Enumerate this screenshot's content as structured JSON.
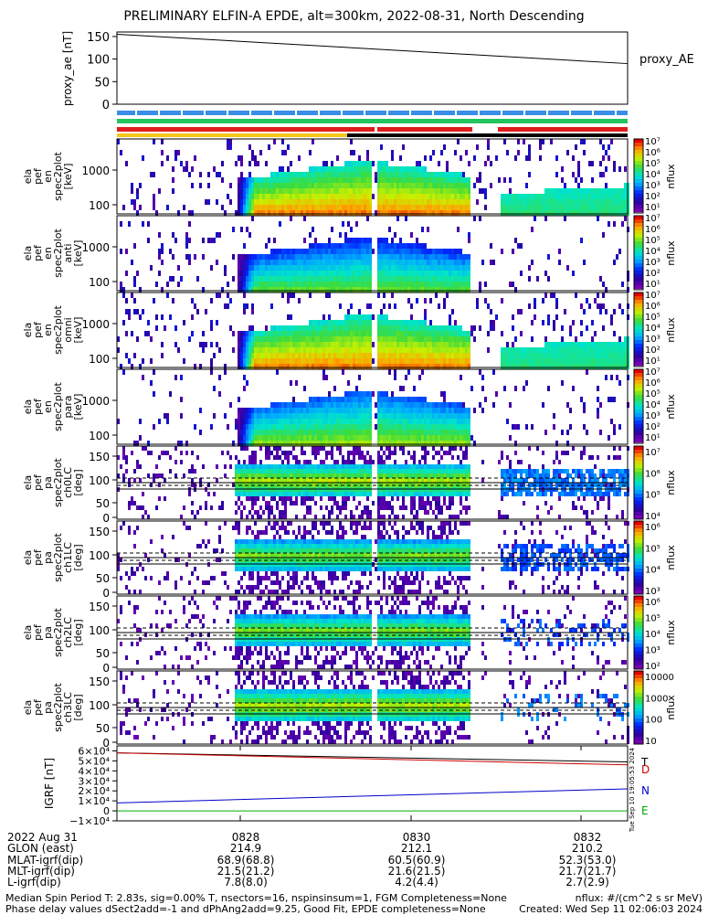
{
  "title": "PRELIMINARY ELFIN-A EPDE, alt=300km, 2022-08-31, North Descending",
  "colors": {
    "axis": "#000000",
    "trace": "#000000",
    "Bx": "#cc0000",
    "By": "#0000cc",
    "Bz": "#00aa00"
  },
  "panels": {
    "proxy_ae": {
      "ylabel": "proxy_ae [nT]",
      "series_label": "proxy_AE",
      "yticks": [
        "150",
        "100",
        "50",
        "0"
      ]
    },
    "bars": {
      "colors": [
        "#3a8ee8",
        "#22c55e",
        "#e01b1b",
        "#f5c518",
        "#000000"
      ]
    },
    "energy_spec": [
      {
        "ylabel": [
          "ela",
          "pef",
          "en",
          "spec2plot",
          "[keV]"
        ],
        "yticks": [
          "1000",
          "100"
        ],
        "cb_label": "nflux",
        "cb_ticks": [
          "10⁷",
          "10⁶",
          "10⁵",
          "10⁴",
          "10³",
          "10²",
          "10¹"
        ]
      },
      {
        "ylabel": [
          "ela",
          "pef",
          "en",
          "spec2plot",
          "anti",
          "[keV]"
        ],
        "yticks": [
          "1000",
          "100"
        ],
        "cb_label": "nflux",
        "cb_ticks": [
          "10⁷",
          "10⁶",
          "10⁵",
          "10⁴",
          "10³",
          "10²",
          "10¹"
        ]
      },
      {
        "ylabel": [
          "ela",
          "pef",
          "en",
          "spec2plot",
          "omni",
          "[keV]"
        ],
        "yticks": [
          "1000",
          "100"
        ],
        "cb_label": "nflux",
        "cb_ticks": [
          "10⁷",
          "10⁶",
          "10⁵",
          "10⁴",
          "10³",
          "10²",
          "10¹"
        ]
      },
      {
        "ylabel": [
          "ela",
          "pef",
          "en",
          "spec2plot",
          "para",
          "[keV]"
        ],
        "yticks": [
          "1000",
          "100"
        ],
        "cb_label": "nflux",
        "cb_ticks": [
          "10⁷",
          "10⁶",
          "10⁵",
          "10⁴",
          "10³",
          "10²",
          "10¹"
        ]
      }
    ],
    "pa_spec": [
      {
        "ylabel": [
          "ela",
          "pef",
          "pa",
          "spec2plot",
          "ch0LC",
          "[deg]"
        ],
        "yticks": [
          "150",
          "100",
          "50",
          "0"
        ],
        "cb_label": "nflux",
        "cb_ticks": [
          "10⁷",
          "10⁶",
          "10⁵",
          "10⁴"
        ]
      },
      {
        "ylabel": [
          "ela",
          "pef",
          "pa",
          "spec2plot",
          "ch1LC",
          "[deg]"
        ],
        "yticks": [
          "150",
          "100",
          "50",
          "0"
        ],
        "cb_label": "nflux",
        "cb_ticks": [
          "10⁶",
          "10⁵",
          "10⁴",
          "10³"
        ]
      },
      {
        "ylabel": [
          "ela",
          "pef",
          "pa",
          "spec2plot",
          "ch2LC",
          "[deg]"
        ],
        "yticks": [
          "150",
          "100",
          "50",
          "0"
        ],
        "cb_label": "nflux",
        "cb_ticks": [
          "10⁶",
          "10⁵",
          "10⁴",
          "10³",
          "10²"
        ]
      },
      {
        "ylabel": [
          "ela",
          "pef",
          "pa",
          "spec2plot",
          "ch3LC",
          "[deg]"
        ],
        "yticks": [
          "150",
          "100",
          "50",
          "0"
        ],
        "cb_label": "nflux",
        "cb_ticks": [
          "10000",
          "1000",
          "100",
          "10"
        ]
      }
    ],
    "igrf": {
      "ylabel": "IGRF [nT]",
      "yticks": [
        "6×10⁴",
        "5×10⁴",
        "4×10⁴",
        "3×10⁴",
        "2×10⁴",
        "1×10⁴",
        "0",
        "−1×10⁴"
      ],
      "legend": [
        "T",
        "D",
        "N",
        "E"
      ],
      "stamp": "Tue Sep 10 19:05:53 2024"
    }
  },
  "chart_data": {
    "type": "line",
    "x_ticks": [
      "0828",
      "0830",
      "0832"
    ],
    "proxy_ae": {
      "x_start": "0826:30",
      "x_end": "0833:00",
      "values_start": 155,
      "values_end": 90,
      "ylim": [
        0,
        160
      ]
    },
    "igrf": {
      "ylim": [
        -10000,
        65000
      ],
      "series": [
        {
          "name": "T",
          "start": 58000,
          "end": 49000
        },
        {
          "name": "D",
          "start": 58000,
          "end": 46000
        },
        {
          "name": "N",
          "start": 8000,
          "end": 22000
        },
        {
          "name": "E",
          "start": 0,
          "end": 0
        }
      ]
    }
  },
  "ephem": {
    "row_labels": [
      "2022 Aug 31",
      "GLON (east)",
      "MLAT-igrf(dip)",
      "MLT-igrf(dip)",
      "L-igrf(dip)"
    ],
    "columns": [
      {
        "time": "0828",
        "glon": "214.9",
        "mlat": "68.9(68.8)",
        "mlt": "21.5(21.2)",
        "l": "7.8(8.0)"
      },
      {
        "time": "0830",
        "glon": "212.1",
        "mlat": "60.5(60.9)",
        "mlt": "21.6(21.5)",
        "l": "4.2(4.4)"
      },
      {
        "time": "0832",
        "glon": "210.2",
        "mlat": "52.3(53.0)",
        "mlt": "21.7(21.7)",
        "l": "2.7(2.9)"
      }
    ]
  },
  "footer": {
    "left1": "Median Spin Period T: 2.83s, sig=0.00% T, nsectors=16, nspinsinsum=1, FGM Completeness=None",
    "left2": "Phase delay values dSect2add=-1 and dPhAng2add=9.25, Good Fit, EPDE completeness=None",
    "right1": "nflux: #/(cm^2 s sr MeV)",
    "right2": "Created: Wed Sep 11 02:06:03 2024"
  }
}
